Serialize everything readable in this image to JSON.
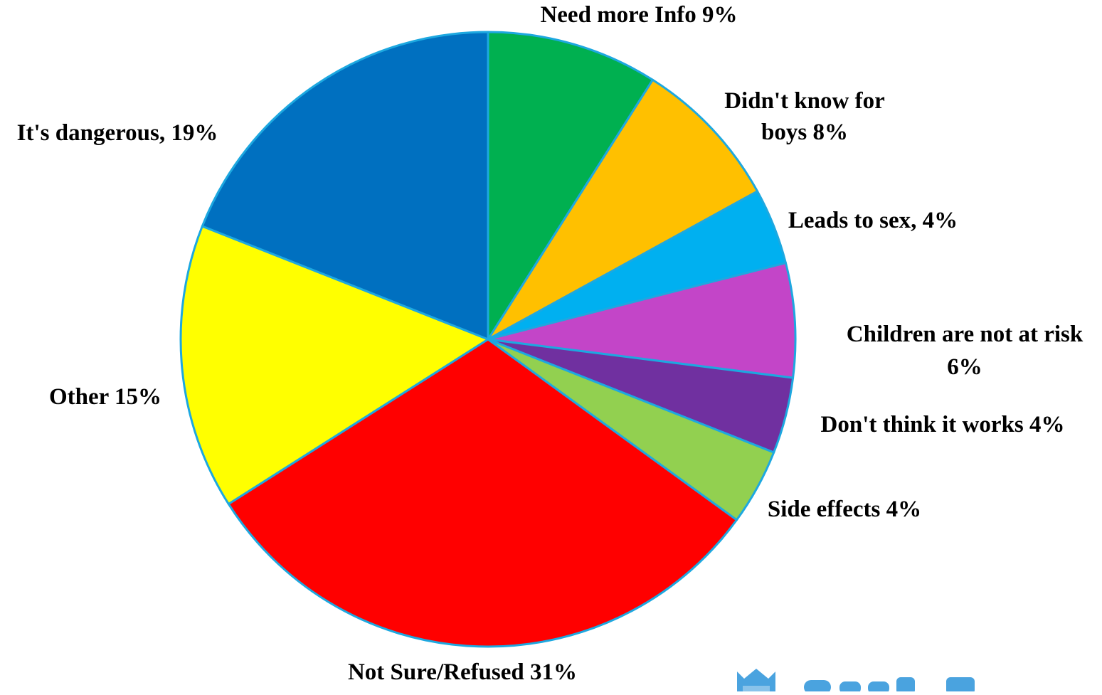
{
  "chart_data": {
    "type": "pie",
    "start_angle_deg": 0,
    "direction": "clockwise",
    "border_color": "#1da8e0",
    "slices": [
      {
        "label": "Need more Info",
        "value": 9,
        "display": "Need more Info 9%",
        "color": "#00b050"
      },
      {
        "label": "Didn't know for boys",
        "value": 8,
        "display": "Didn't know for boys 8%",
        "color": "#ffc000"
      },
      {
        "label": "Leads to sex",
        "value": 4,
        "display": "Leads to sex, 4%",
        "color": "#00b0f0"
      },
      {
        "label": "Children are not at risk",
        "value": 6,
        "display": "Children are not at risk 6%",
        "color": "#c345c8"
      },
      {
        "label": "Don't think it works",
        "value": 4,
        "display": "Don't think it works 4%",
        "color": "#7030a0"
      },
      {
        "label": "Side effects",
        "value": 4,
        "display": "Side effects 4%",
        "color": "#92d050"
      },
      {
        "label": "Not Sure/Refused",
        "value": 31,
        "display": "Not Sure/Refused 31%",
        "color": "#ff0000"
      },
      {
        "label": "Other",
        "value": 15,
        "display": "Other  15%",
        "color": "#ffff00"
      },
      {
        "label": "It's dangerous",
        "value": 19,
        "display": "It's dangerous, 19%",
        "color": "#0070c0"
      }
    ]
  },
  "labels": {
    "need_more_info": "Need more Info 9%",
    "didnt_know_line1": "Didn't know for",
    "didnt_know_line2": "boys 8%",
    "leads_to_sex": "Leads to sex, 4%",
    "children_line1": "Children are not at risk",
    "children_line2": "6%",
    "dont_think": "Don't think it works 4%",
    "side_effects": "Side effects 4%",
    "not_sure": "Not Sure/Refused 31%",
    "other": "Other  15%",
    "dangerous": "It's dangerous, 19%"
  },
  "logo": {
    "icon": "bookmark-logo-icon",
    "color": "#4aa3df"
  }
}
